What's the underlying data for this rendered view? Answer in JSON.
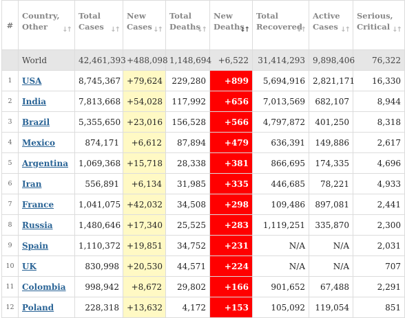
{
  "headers": {
    "index": "#",
    "country": [
      "Country,",
      "Other"
    ],
    "total_cases": [
      "Total",
      "Cases"
    ],
    "new_cases": [
      "New",
      "Cases"
    ],
    "total_deaths": [
      "Total",
      "Deaths"
    ],
    "new_deaths": [
      "New",
      "Deaths"
    ],
    "total_recovered": [
      "Total",
      "Recovered"
    ],
    "active_cases": [
      "Active",
      "Cases"
    ],
    "serious_critical": [
      "Serious,",
      "Critical"
    ],
    "sort_icon": "↓↑",
    "sort_icon_name": "sort-arrows-icon"
  },
  "world": {
    "country": "World",
    "total_cases": "42,461,393",
    "new_cases": "+488,098",
    "total_deaths": "1,148,694",
    "new_deaths": "+6,522",
    "total_recovered": "31,414,293",
    "active_cases": "9,898,406",
    "serious_critical": "76,322"
  },
  "rows": [
    {
      "index": "1",
      "country": "USA",
      "total_cases": "8,745,367",
      "new_cases": "+79,624",
      "total_deaths": "229,280",
      "new_deaths": "+899",
      "total_recovered": "5,694,916",
      "active_cases": "2,821,171",
      "serious_critical": "16,330"
    },
    {
      "index": "2",
      "country": "India",
      "total_cases": "7,813,668",
      "new_cases": "+54,028",
      "total_deaths": "117,992",
      "new_deaths": "+656",
      "total_recovered": "7,013,569",
      "active_cases": "682,107",
      "serious_critical": "8,944"
    },
    {
      "index": "3",
      "country": "Brazil",
      "total_cases": "5,355,650",
      "new_cases": "+23,016",
      "total_deaths": "156,528",
      "new_deaths": "+566",
      "total_recovered": "4,797,872",
      "active_cases": "401,250",
      "serious_critical": "8,318"
    },
    {
      "index": "4",
      "country": "Mexico",
      "total_cases": "874,171",
      "new_cases": "+6,612",
      "total_deaths": "87,894",
      "new_deaths": "+479",
      "total_recovered": "636,391",
      "active_cases": "149,886",
      "serious_critical": "2,617"
    },
    {
      "index": "5",
      "country": "Argentina",
      "total_cases": "1,069,368",
      "new_cases": "+15,718",
      "total_deaths": "28,338",
      "new_deaths": "+381",
      "total_recovered": "866,695",
      "active_cases": "174,335",
      "serious_critical": "4,696"
    },
    {
      "index": "6",
      "country": "Iran",
      "total_cases": "556,891",
      "new_cases": "+6,134",
      "total_deaths": "31,985",
      "new_deaths": "+335",
      "total_recovered": "446,685",
      "active_cases": "78,221",
      "serious_critical": "4,933"
    },
    {
      "index": "7",
      "country": "France",
      "total_cases": "1,041,075",
      "new_cases": "+42,032",
      "total_deaths": "34,508",
      "new_deaths": "+298",
      "total_recovered": "109,486",
      "active_cases": "897,081",
      "serious_critical": "2,441"
    },
    {
      "index": "8",
      "country": "Russia",
      "total_cases": "1,480,646",
      "new_cases": "+17,340",
      "total_deaths": "25,525",
      "new_deaths": "+283",
      "total_recovered": "1,119,251",
      "active_cases": "335,870",
      "serious_critical": "2,300"
    },
    {
      "index": "9",
      "country": "Spain",
      "total_cases": "1,110,372",
      "new_cases": "+19,851",
      "total_deaths": "34,752",
      "new_deaths": "+231",
      "total_recovered": "N/A",
      "active_cases": "N/A",
      "serious_critical": "2,031"
    },
    {
      "index": "10",
      "country": "UK",
      "total_cases": "830,998",
      "new_cases": "+20,530",
      "total_deaths": "44,571",
      "new_deaths": "+224",
      "total_recovered": "N/A",
      "active_cases": "N/A",
      "serious_critical": "707"
    },
    {
      "index": "11",
      "country": "Colombia",
      "total_cases": "998,942",
      "new_cases": "+8,672",
      "total_deaths": "29,802",
      "new_deaths": "+166",
      "total_recovered": "901,652",
      "active_cases": "67,488",
      "serious_critical": "2,291"
    },
    {
      "index": "12",
      "country": "Poland",
      "total_cases": "228,318",
      "new_cases": "+13,632",
      "total_deaths": "4,172",
      "new_deaths": "+153",
      "total_recovered": "105,092",
      "active_cases": "119,054",
      "serious_critical": "851"
    }
  ],
  "colors": {
    "new_cases_bg": "#fff9c4",
    "new_deaths_bg": "#ff0000",
    "world_row_bg": "#e6e6e6",
    "link": "#2a6496",
    "header_text": "#888888"
  }
}
